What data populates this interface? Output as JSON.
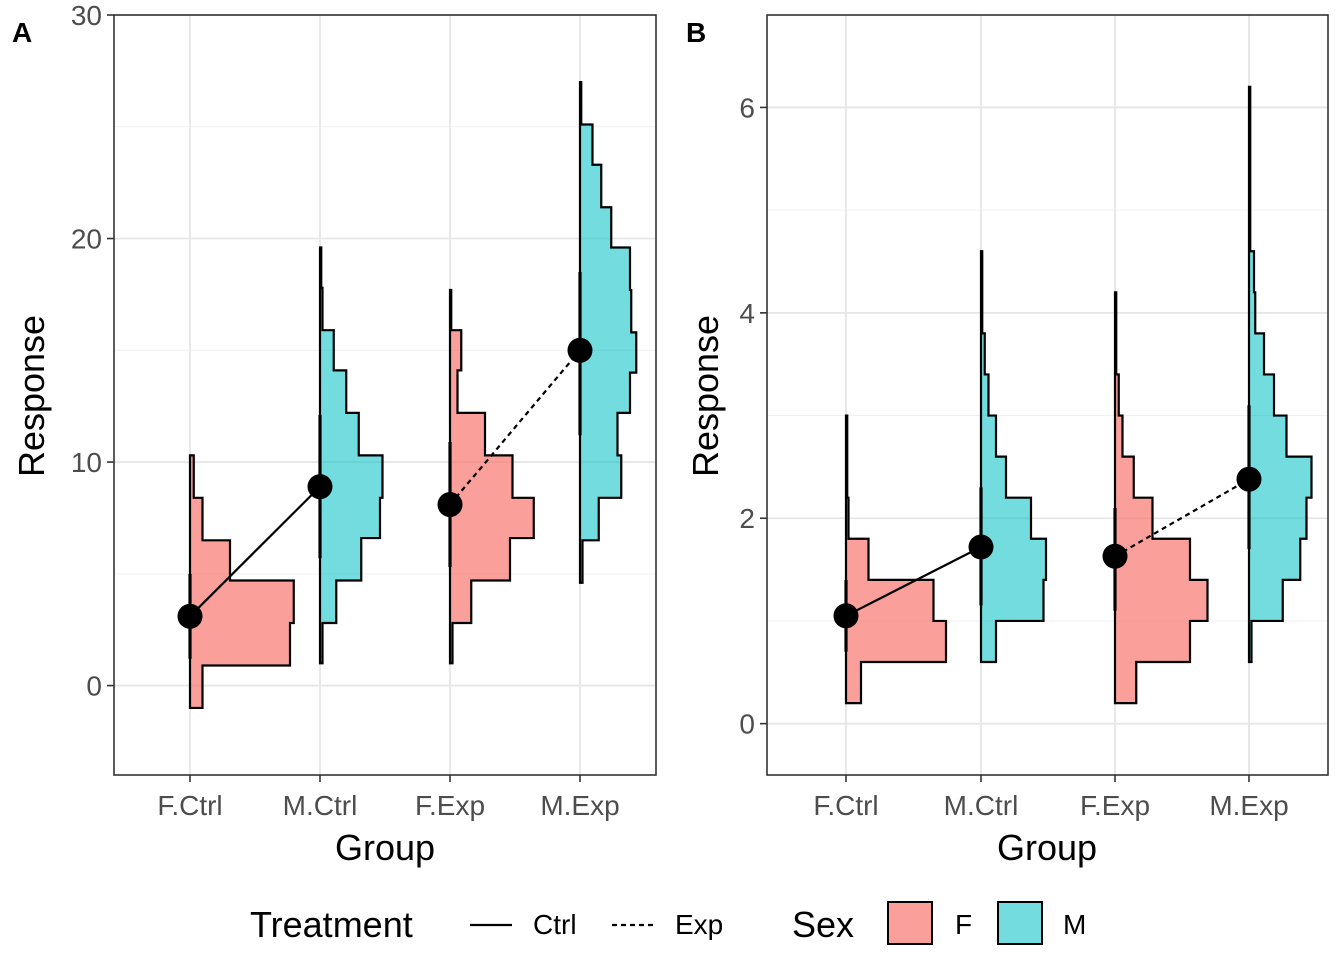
{
  "legend": {
    "treatment_title": "Treatment",
    "treatment_items": [
      {
        "label": "Ctrl",
        "linetype": "solid"
      },
      {
        "label": "Exp",
        "linetype": "dashed"
      }
    ],
    "sex_title": "Sex",
    "sex_items": [
      {
        "label": "F",
        "color": "#F8766D"
      },
      {
        "label": "M",
        "color": "#00BFC4"
      }
    ]
  },
  "chart_data": [
    {
      "panel_tag": "A",
      "type": "histogram-violin",
      "xlabel": "Group",
      "ylabel": "Response",
      "categories": [
        "F.Ctrl",
        "M.Ctrl",
        "F.Exp",
        "M.Exp"
      ],
      "ylim": [
        -4,
        30
      ],
      "yticks": [
        0,
        10,
        20,
        30
      ],
      "grid": true,
      "groups": [
        {
          "category": "F.Ctrl",
          "sex": "F",
          "treatment": "Ctrl",
          "bin_edges": [
            -1.0,
            0.9,
            2.8,
            4.7,
            6.5,
            8.4,
            10.3
          ],
          "heights": [
            0.1,
            0.8,
            0.83,
            0.32,
            0.1,
            0.03
          ],
          "mean": 3.1,
          "line_range": [
            1.2,
            5.0
          ]
        },
        {
          "category": "M.Ctrl",
          "sex": "M",
          "treatment": "Ctrl",
          "bin_edges": [
            1.0,
            2.8,
            4.7,
            6.6,
            8.4,
            10.3,
            12.2,
            14.1,
            15.9,
            17.8,
            19.6
          ],
          "heights": [
            0.02,
            0.13,
            0.33,
            0.48,
            0.5,
            0.31,
            0.21,
            0.11,
            0.02,
            0.01
          ],
          "mean": 8.9,
          "line_range": [
            5.7,
            12.1
          ]
        },
        {
          "category": "F.Exp",
          "sex": "F",
          "treatment": "Exp",
          "bin_edges": [
            1.0,
            2.8,
            4.7,
            6.6,
            8.4,
            10.3,
            12.2,
            14.1,
            15.9,
            17.7
          ],
          "heights": [
            0.02,
            0.17,
            0.48,
            0.67,
            0.5,
            0.28,
            0.06,
            0.09,
            0.01
          ],
          "mean": 8.1,
          "line_range": [
            5.3,
            10.9
          ]
        },
        {
          "category": "M.Exp",
          "sex": "M",
          "treatment": "Exp",
          "bin_edges": [
            4.6,
            6.5,
            8.4,
            10.3,
            12.2,
            14.0,
            15.8,
            17.7,
            19.6,
            21.4,
            23.3,
            25.1,
            27.0
          ],
          "heights": [
            0.02,
            0.15,
            0.33,
            0.3,
            0.4,
            0.45,
            0.41,
            0.4,
            0.25,
            0.17,
            0.1,
            0.01
          ],
          "mean": 15.0,
          "line_range": [
            11.2,
            18.5
          ]
        }
      ]
    },
    {
      "panel_tag": "B",
      "type": "histogram-violin",
      "xlabel": "Group",
      "ylabel": "Response",
      "categories": [
        "F.Ctrl",
        "M.Ctrl",
        "F.Exp",
        "M.Exp"
      ],
      "ylim": [
        -0.5,
        6.9
      ],
      "yticks": [
        0,
        2,
        4,
        6
      ],
      "grid": true,
      "groups": [
        {
          "category": "F.Ctrl",
          "sex": "F",
          "treatment": "Ctrl",
          "bin_edges": [
            0.2,
            0.6,
            1.0,
            1.4,
            1.8,
            2.2,
            2.6,
            3.0
          ],
          "heights": [
            0.12,
            0.8,
            0.7,
            0.18,
            0.02,
            0.01,
            0.01
          ],
          "mean": 1.05,
          "line_range": [
            0.7,
            1.4
          ]
        },
        {
          "category": "M.Ctrl",
          "sex": "M",
          "treatment": "Ctrl",
          "bin_edges": [
            0.6,
            1.0,
            1.4,
            1.8,
            2.2,
            2.6,
            3.0,
            3.4,
            3.8,
            4.2,
            4.6
          ],
          "heights": [
            0.12,
            0.5,
            0.52,
            0.4,
            0.2,
            0.12,
            0.06,
            0.03,
            0.01,
            0.01
          ],
          "mean": 1.72,
          "line_range": [
            1.15,
            2.3
          ]
        },
        {
          "category": "F.Exp",
          "sex": "F",
          "treatment": "Exp",
          "bin_edges": [
            0.2,
            0.6,
            1.0,
            1.4,
            1.8,
            2.2,
            2.6,
            3.0,
            3.4,
            3.8,
            4.2
          ],
          "heights": [
            0.17,
            0.6,
            0.74,
            0.6,
            0.3,
            0.15,
            0.06,
            0.03,
            0.01,
            0.01
          ],
          "mean": 1.63,
          "line_range": [
            1.1,
            2.1
          ]
        },
        {
          "category": "M.Exp",
          "sex": "M",
          "treatment": "Exp",
          "bin_edges": [
            0.6,
            1.0,
            1.4,
            1.8,
            2.2,
            2.6,
            3.0,
            3.4,
            3.8,
            4.2,
            4.6,
            5.0,
            5.4,
            5.8,
            6.2
          ],
          "heights": [
            0.02,
            0.27,
            0.41,
            0.46,
            0.5,
            0.3,
            0.2,
            0.12,
            0.05,
            0.04,
            0.01,
            0.01,
            0.01,
            0.01
          ],
          "mean": 2.38,
          "line_range": [
            1.7,
            3.1
          ]
        }
      ]
    }
  ]
}
